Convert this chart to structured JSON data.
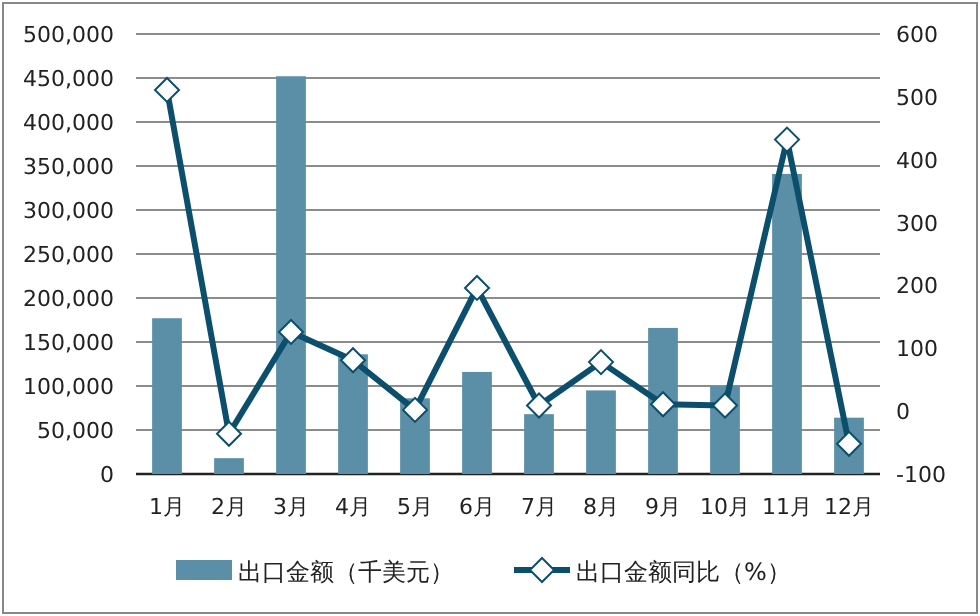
{
  "chart_data": {
    "type": "bar",
    "categories": [
      "1月",
      "2月",
      "3月",
      "4月",
      "5月",
      "6月",
      "7月",
      "8月",
      "9月",
      "10月",
      "11月",
      "12月"
    ],
    "series": [
      {
        "name": "出口金额（千美元）",
        "color": "#5b8fa8",
        "values": [
          177000,
          18000,
          452000,
          136000,
          86000,
          116000,
          68000,
          95000,
          166000,
          100000,
          341000,
          64000
        ]
      },
      {
        "name": "出口金额同比（%）",
        "type": "line",
        "axis": "y2",
        "color": "#0b4f6c",
        "marker": "diamond",
        "values": [
          511,
          -36,
          126,
          81,
          2,
          196,
          9,
          78,
          11,
          9,
          432,
          -52
        ]
      }
    ],
    "ylim": [
      0,
      500000
    ],
    "yticks": [
      0,
      {
        "value": 50000,
        "label": "50,000"
      },
      {
        "value": 100000,
        "label": "100,000"
      },
      {
        "value": 150000,
        "label": "150,000"
      },
      {
        "value": 200000,
        "label": "200,000"
      },
      {
        "value": 250000,
        "label": "250,000"
      },
      {
        "value": 300000,
        "label": "300,000"
      },
      {
        "value": 350000,
        "label": "350,000"
      },
      {
        "value": 400000,
        "label": "400,000"
      },
      {
        "value": 450000,
        "label": "450,000"
      },
      {
        "value": 500000,
        "label": "500,000"
      }
    ],
    "y2lim": [
      -100,
      600
    ],
    "y2ticks": [
      -100,
      0,
      100,
      200,
      300,
      400,
      500,
      600
    ],
    "grid": "y",
    "legend": "bottom"
  }
}
